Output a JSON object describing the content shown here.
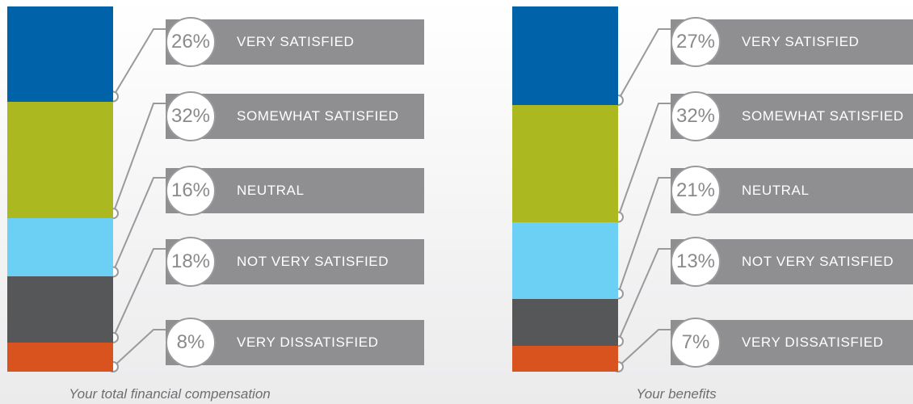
{
  "chart_data": [
    {
      "type": "bar",
      "stacked": true,
      "title": "",
      "caption": "Your total financial compensation",
      "categories": [
        "VERY SATISFIED",
        "SOMEWHAT SATISFIED",
        "NEUTRAL",
        "NOT VERY SATISFIED",
        "VERY DISSATISFIED"
      ],
      "values": [
        26,
        32,
        16,
        18,
        8
      ],
      "labels": [
        "26%",
        "32%",
        "16%",
        "18%",
        "8%"
      ],
      "colors": [
        "#0062a8",
        "#acb81f",
        "#6ccff4",
        "#555759",
        "#d9531e"
      ]
    },
    {
      "type": "bar",
      "stacked": true,
      "title": "",
      "caption": "Your benefits",
      "categories": [
        "VERY SATISFIED",
        "SOMEWHAT SATISFIED",
        "NEUTRAL",
        "NOT VERY SATISFIED",
        "VERY DISSATISFIED"
      ],
      "values": [
        27,
        32,
        21,
        13,
        7
      ],
      "labels": [
        "27%",
        "32%",
        "21%",
        "13%",
        "7%"
      ],
      "colors": [
        "#0062a8",
        "#acb81f",
        "#6ccff4",
        "#555759",
        "#d9531e"
      ]
    }
  ]
}
